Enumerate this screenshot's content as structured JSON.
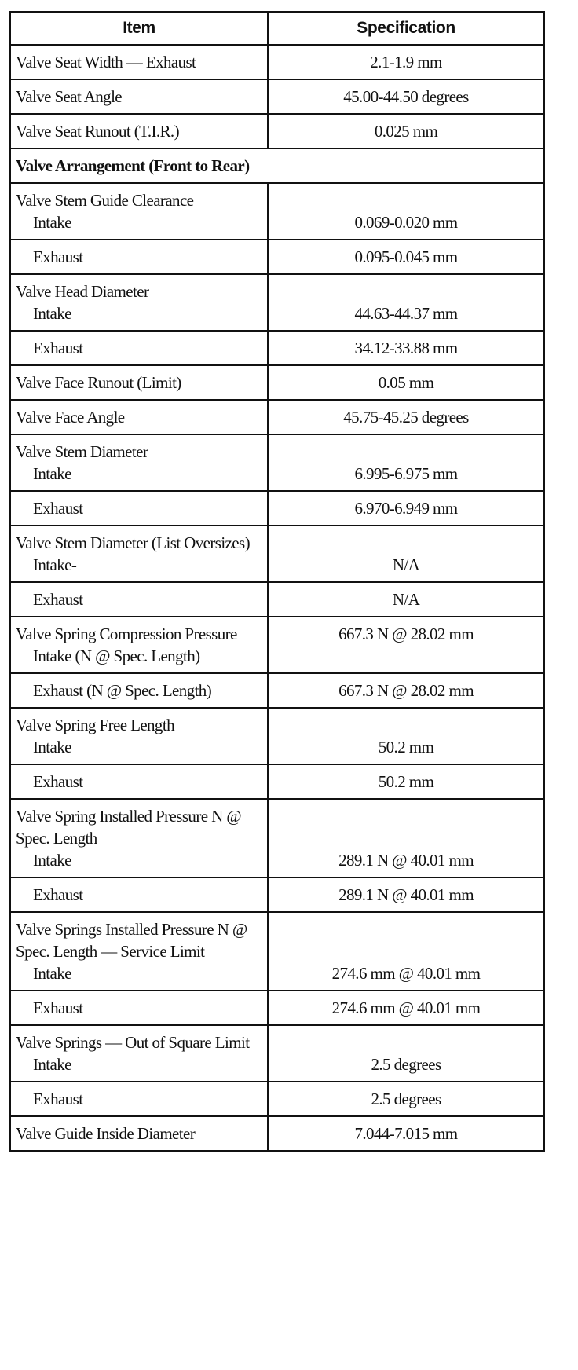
{
  "table": {
    "headers": [
      "Item",
      "Specification"
    ],
    "rows": [
      {
        "type": "item",
        "item": "Valve Seat Width — Exhaust",
        "spec": "2.1-1.9 mm"
      },
      {
        "type": "item",
        "item": "Valve Seat Angle",
        "spec": "45.00-44.50 degrees"
      },
      {
        "type": "item",
        "item": "Valve Seat Runout (T.I.R.)",
        "spec": "0.025 mm"
      },
      {
        "type": "section",
        "item": "Valve Arrangement (Front to Rear)"
      },
      {
        "type": "group",
        "item": "Valve Stem Guide Clearance",
        "sub": "Intake",
        "spec": "0.069-0.020 mm"
      },
      {
        "type": "sub",
        "sub": "Exhaust",
        "spec": "0.095-0.045 mm"
      },
      {
        "type": "group",
        "item": "Valve Head Diameter",
        "sub": "Intake",
        "spec": "44.63-44.37 mm"
      },
      {
        "type": "sub",
        "sub": "Exhaust",
        "spec": "34.12-33.88 mm"
      },
      {
        "type": "item",
        "item": "Valve Face Runout (Limit)",
        "spec": "0.05 mm"
      },
      {
        "type": "item",
        "item": "Valve Face Angle",
        "spec": "45.75-45.25 degrees"
      },
      {
        "type": "group",
        "item": "Valve Stem Diameter",
        "sub": "Intake",
        "spec": "6.995-6.975 mm"
      },
      {
        "type": "sub",
        "sub": "Exhaust",
        "spec": "6.970-6.949 mm"
      },
      {
        "type": "group",
        "item": "Valve Stem Diameter (List Oversizes)",
        "sub": "Intake-",
        "spec": "N/A"
      },
      {
        "type": "sub",
        "sub": "Exhaust",
        "spec": "N/A"
      },
      {
        "type": "group",
        "item": "Valve Spring Compression Pressure",
        "sub": "Intake (N @ Spec. Length)",
        "spec": "667.3 N @ 28.02 mm",
        "mid": true
      },
      {
        "type": "sub",
        "sub": "Exhaust (N @ Spec. Length)",
        "spec": "667.3 N @ 28.02 mm",
        "top": true
      },
      {
        "type": "group",
        "item": "Valve Spring Free Length",
        "sub": "Intake",
        "spec": "50.2 mm"
      },
      {
        "type": "sub",
        "sub": "Exhaust",
        "spec": "50.2 mm"
      },
      {
        "type": "group",
        "item": "Valve Spring Installed Pressure N @ Spec. Length",
        "sub": "Intake",
        "spec": "289.1 N @ 40.01 mm"
      },
      {
        "type": "sub",
        "sub": "Exhaust",
        "spec": "289.1 N @ 40.01 mm"
      },
      {
        "type": "group",
        "item": "Valve Springs Installed Pressure N @ Spec. Length — Service Limit",
        "sub": "Intake",
        "spec": "274.6 mm @ 40.01 mm"
      },
      {
        "type": "sub",
        "sub": "Exhaust",
        "spec": "274.6 mm @ 40.01 mm"
      },
      {
        "type": "group",
        "item": "Valve Springs — Out of Square Limit",
        "sub": "Intake",
        "spec": "2.5 degrees"
      },
      {
        "type": "sub",
        "sub": "Exhaust",
        "spec": "2.5 degrees"
      },
      {
        "type": "item",
        "item": "Valve Guide Inside Diameter",
        "spec": "7.044-7.015 mm"
      }
    ]
  }
}
